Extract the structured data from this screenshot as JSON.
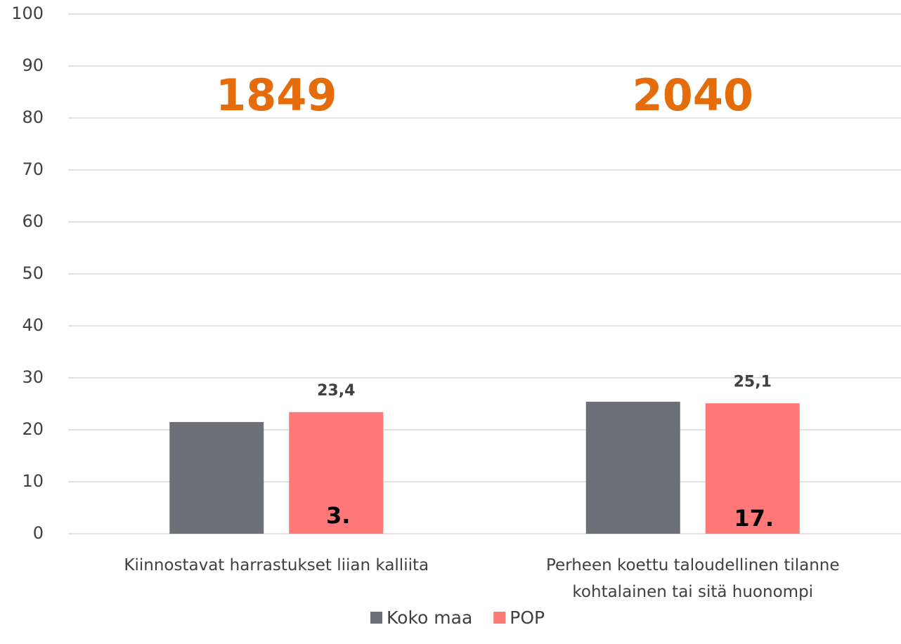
{
  "chart_data": {
    "type": "bar",
    "categories": [
      "Kiinnostavat harrastukset liian kalliita",
      "Perheen koettu taloudellinen tilanne kohtalainen tai sitä huonompi"
    ],
    "series": [
      {
        "name": "Koko maa",
        "color": "#6d7078",
        "values": [
          21.5,
          25.4
        ]
      },
      {
        "name": "POP",
        "color": "#ff7878",
        "values": [
          23.4,
          25.1
        ],
        "value_labels": [
          "23,4",
          "25,1"
        ]
      }
    ],
    "annotations": [
      {
        "text": "1849",
        "color": "#e46c0a"
      },
      {
        "text": "2040",
        "color": "#e46c0a"
      },
      {
        "text": "3.",
        "color": "#000000"
      },
      {
        "text": "17.",
        "color": "#000000"
      }
    ],
    "ylim": [
      0,
      100
    ],
    "yticks": [
      0,
      10,
      20,
      30,
      40,
      50,
      60,
      70,
      80,
      90,
      100
    ],
    "grid": true,
    "legend": "bottom"
  }
}
